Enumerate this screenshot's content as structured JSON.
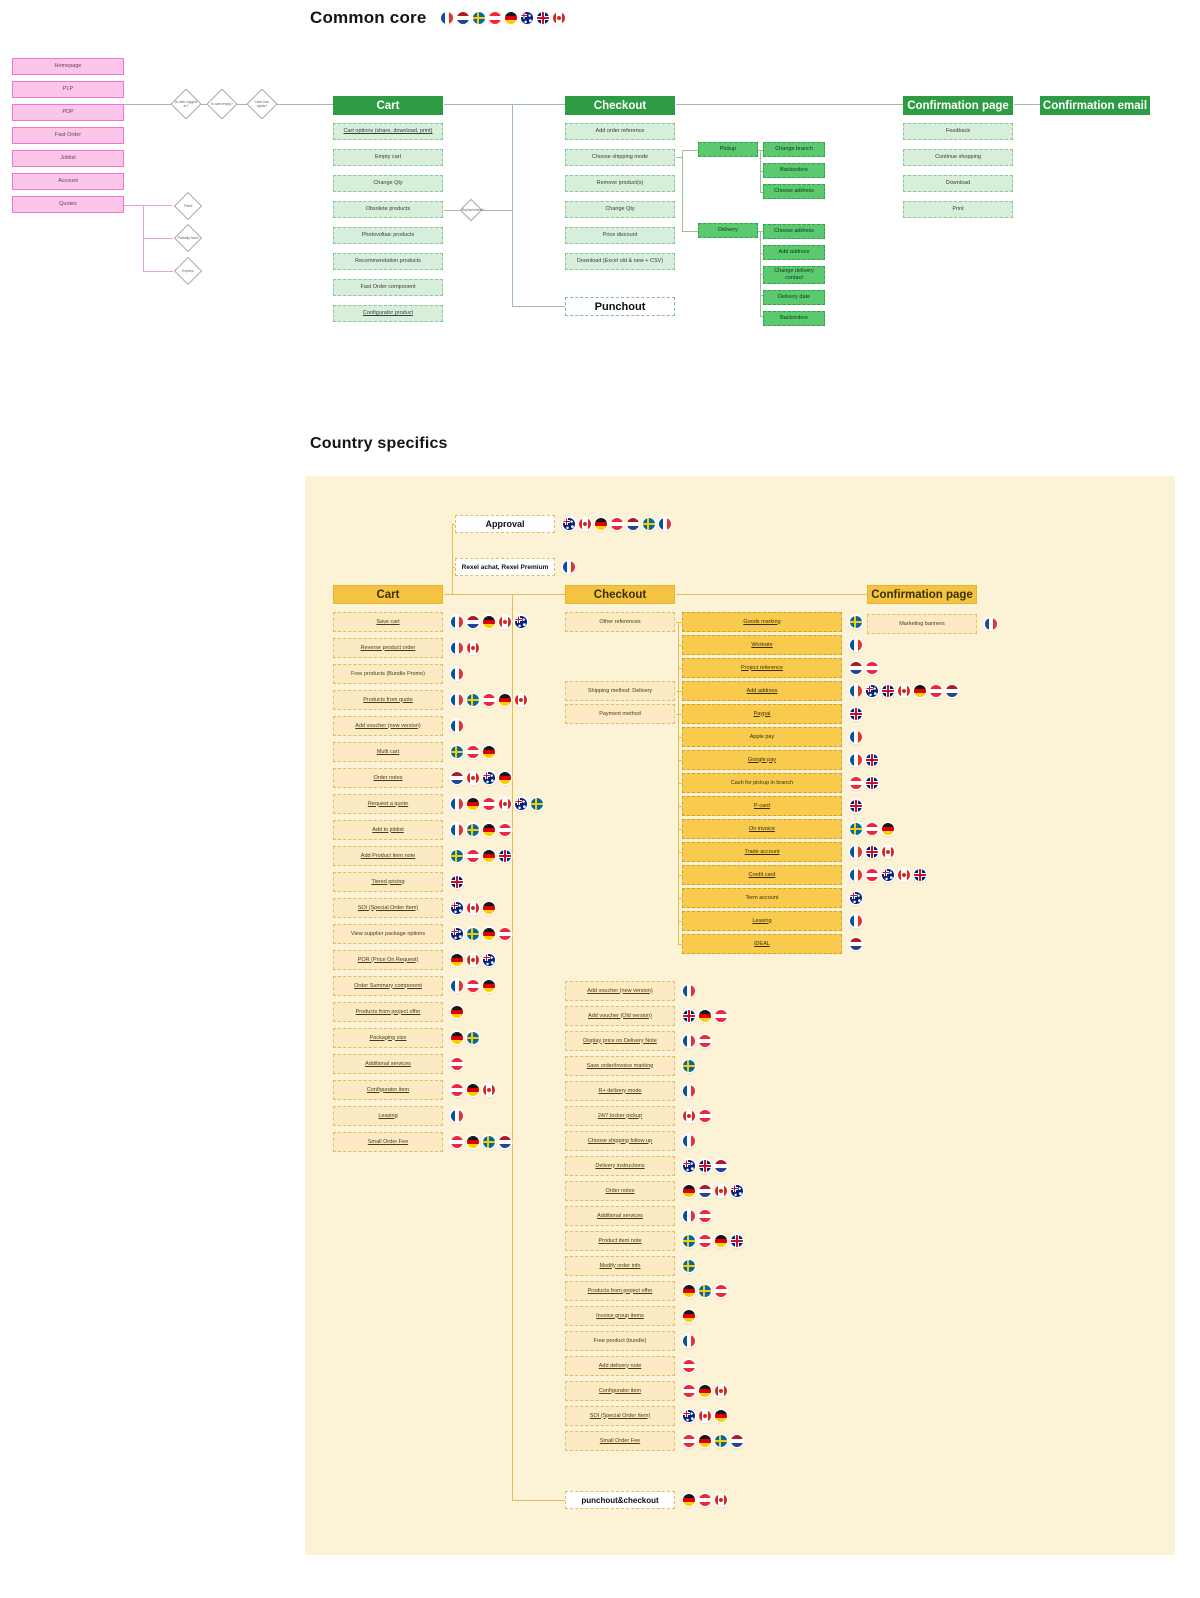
{
  "colors": {
    "green_header": "#2d9c44",
    "green_item": "#d7efda",
    "green_solid": "#5bc96f",
    "yellow_header": "#f5c342",
    "yellow_item": "#fbeac3",
    "yellow_strong": "#f8ca4d",
    "pink": "#fbc6ea",
    "panel_beige": "#fcf3d6"
  },
  "common_core": {
    "title": "Common core",
    "flags": [
      "fr",
      "nl",
      "se",
      "at",
      "de",
      "au",
      "uk",
      "ca"
    ],
    "pages": [
      "Homepage",
      "PLP",
      "PDP",
      "Fast Order",
      "Joblist",
      "Account",
      "Quotes"
    ],
    "decisions_top": [
      "Is user logged in?",
      "Is cart empty?",
      "User has rights?"
    ],
    "decisions_quotes": [
      "Fixed",
      "Partially fixed",
      "Expires"
    ],
    "decision_obsolete": "Replacement?",
    "cart": {
      "title": "Cart",
      "items": [
        {
          "label": "Cart options (share, download, print)",
          "u": true
        },
        "Empty cart",
        "Change Qty",
        "Obsolete products",
        "Photovoltaic products",
        "Recommendation products",
        "Fast Order component",
        {
          "label": "Configurator product",
          "u": true
        }
      ]
    },
    "checkout": {
      "title": "Checkout",
      "punchout": "Punchout",
      "items": [
        "Add order reference",
        "Choose shipping mode",
        "Remove product(s)",
        "Change Qty",
        "Price discount",
        "Download (Excel old & new + CSV)"
      ]
    },
    "pickup": {
      "label": "Pickup",
      "children": [
        "Change branch",
        "Backorders",
        "Choose address"
      ]
    },
    "delivery": {
      "label": "Delivery",
      "children": [
        "Choose address",
        "Add address",
        "Change delivery contact",
        "Delivery date",
        "Backorders"
      ]
    },
    "confirmation_page": {
      "title": "Confirmation page",
      "items": [
        "Feedback",
        "Continue shopping",
        "Download",
        "Print"
      ]
    },
    "confirmation_email": {
      "title": "Confirmation email"
    }
  },
  "country_specifics": {
    "title": "Country specifics",
    "approval": {
      "label": "Approval",
      "flags": [
        "au",
        "ca",
        "de",
        "at",
        "nl",
        "se",
        "fr"
      ]
    },
    "rexel": {
      "label": "Rexel achat, Rexel Premium",
      "flags": [
        "fr"
      ]
    },
    "cart": {
      "title": "Cart",
      "items": [
        {
          "label": "Save cart",
          "flags": [
            "fr",
            "nl",
            "de",
            "ca",
            "au"
          ],
          "u": true
        },
        {
          "label": "Reverse product order",
          "flags": [
            "fr",
            "ca"
          ],
          "u": true
        },
        {
          "label": "Free products (Bundle Promo)",
          "flags": [
            "fr"
          ]
        },
        {
          "label": "Products from quote",
          "flags": [
            "fr",
            "se",
            "at",
            "de",
            "ca"
          ],
          "u": true
        },
        {
          "label": "Add voucher (new version)",
          "flags": [
            "fr"
          ],
          "u": true
        },
        {
          "label": "Multi cart",
          "flags": [
            "se",
            "at",
            "de"
          ],
          "u": true
        },
        {
          "label": "Order notes",
          "flags": [
            "nl",
            "ca",
            "au",
            "de"
          ],
          "u": true
        },
        {
          "label": "Request a quote",
          "flags": [
            "fr",
            "de",
            "at",
            "ca",
            "au",
            "se"
          ],
          "u": true
        },
        {
          "label": "Add to joblist",
          "flags": [
            "fr",
            "se",
            "de",
            "at"
          ],
          "u": true
        },
        {
          "label": "Add Product item note",
          "flags": [
            "se",
            "at",
            "de",
            "uk"
          ],
          "u": true
        },
        {
          "label": "Tiered pricing",
          "flags": [
            "uk"
          ],
          "u": true
        },
        {
          "label": "SOI (Special Order Item)",
          "flags": [
            "au",
            "ca",
            "de"
          ],
          "u": true
        },
        {
          "label": "View supplier package options",
          "flags": [
            "au",
            "se",
            "de",
            "at"
          ]
        },
        {
          "label": "POR (Price On Request)",
          "flags": [
            "de",
            "ca",
            "au"
          ],
          "u": true
        },
        {
          "label": "Order Summary component",
          "flags": [
            "fr",
            "at",
            "de"
          ],
          "u": true
        },
        {
          "label": "Products from project offer",
          "flags": [
            "de"
          ],
          "u": true
        },
        {
          "label": "Packaging size",
          "flags": [
            "de",
            "se"
          ],
          "u": true
        },
        {
          "label": "Additional services",
          "flags": [
            "at"
          ],
          "u": true
        },
        {
          "label": "Configurator item",
          "flags": [
            "at",
            "de",
            "ca"
          ],
          "u": true
        },
        {
          "label": "Leasing",
          "flags": [
            "fr"
          ],
          "u": true
        },
        {
          "label": "Small Order Fee",
          "flags": [
            "at",
            "de",
            "se",
            "nl"
          ],
          "u": true
        }
      ]
    },
    "checkout": {
      "title": "Checkout",
      "groups": [
        {
          "label": "Other references"
        },
        {
          "label": "Shipping method: Delivery"
        },
        {
          "label": "Payment method"
        }
      ],
      "group_children": [
        {
          "label": "Goods marking",
          "flags": [
            "se"
          ],
          "u": true
        },
        {
          "label": "Worksite",
          "flags": [
            "fr"
          ],
          "u": true
        },
        {
          "label": "Project reference",
          "flags": [
            "nl",
            "at"
          ],
          "u": true
        },
        {
          "label": "Add address",
          "flags": [
            "fr",
            "au",
            "uk",
            "ca",
            "de",
            "at",
            "nl"
          ],
          "u": true
        },
        {
          "label": "Paypal",
          "flags": [
            "uk"
          ],
          "u": true
        },
        {
          "label": "Apple pay",
          "flags": [
            "fr"
          ]
        },
        {
          "label": "Google pay",
          "flags": [
            "fr",
            "uk"
          ],
          "u": true
        },
        {
          "label": "Cash for pickup in branch",
          "flags": [
            "at",
            "uk"
          ]
        },
        {
          "label": "P-card",
          "flags": [
            "uk"
          ],
          "u": true
        },
        {
          "label": "On invoice",
          "flags": [
            "se",
            "at",
            "de"
          ],
          "u": true
        },
        {
          "label": "Trade account",
          "flags": [
            "fr",
            "uk",
            "ca"
          ],
          "u": true
        },
        {
          "label": "Credit card",
          "flags": [
            "fr",
            "at",
            "au",
            "ca",
            "uk"
          ],
          "u": true
        },
        {
          "label": "Term account",
          "flags": [
            "au"
          ]
        },
        {
          "label": "Leasing",
          "flags": [
            "fr"
          ],
          "u": true
        },
        {
          "label": "iDEAL",
          "flags": [
            "nl"
          ],
          "u": true
        }
      ],
      "items": [
        {
          "label": "Add voucher (new version)",
          "flags": [
            "fr"
          ],
          "u": true
        },
        {
          "label": "Add voucher (Old version)",
          "flags": [
            "uk",
            "de",
            "at"
          ],
          "u": true
        },
        {
          "label": "Display price on Delivery Note",
          "flags": [
            "fr",
            "at"
          ],
          "u": true
        },
        {
          "label": "Save order/invoice marking",
          "flags": [
            "se"
          ],
          "u": true
        },
        {
          "label": "R+ delivery mode",
          "flags": [
            "fr"
          ],
          "u": true
        },
        {
          "label": "24/7 locker pickup",
          "flags": [
            "ca",
            "at"
          ],
          "u": true
        },
        {
          "label": "Choose shipping follow up",
          "flags": [
            "fr"
          ],
          "u": true
        },
        {
          "label": "Delivery instructions",
          "flags": [
            "au",
            "uk",
            "nl"
          ],
          "u": true
        },
        {
          "label": "Order notes",
          "flags": [
            "de",
            "nl",
            "ca",
            "au"
          ],
          "u": true
        },
        {
          "label": "Additional services",
          "flags": [
            "fr",
            "at"
          ],
          "u": true
        },
        {
          "label": "Product item note",
          "flags": [
            "se",
            "at",
            "de",
            "uk"
          ],
          "u": true
        },
        {
          "label": "Modify order info",
          "flags": [
            "se"
          ],
          "u": true
        },
        {
          "label": "Products from project offer",
          "flags": [
            "de",
            "se",
            "at"
          ],
          "u": true
        },
        {
          "label": "Invoice group items",
          "flags": [
            "de"
          ],
          "u": true
        },
        {
          "label": "Free product (bundle)",
          "flags": [
            "fr"
          ]
        },
        {
          "label": "Add delivery note",
          "flags": [
            "at"
          ],
          "u": true
        },
        {
          "label": "Configurator item",
          "flags": [
            "at",
            "de",
            "ca"
          ],
          "u": true
        },
        {
          "label": "SOI (Special Order Item)",
          "flags": [
            "au",
            "ca",
            "de"
          ],
          "u": true
        },
        {
          "label": "Small Order Fee",
          "flags": [
            "at",
            "de",
            "se",
            "nl"
          ],
          "u": true
        }
      ],
      "punchout": {
        "label": "punchout&checkout",
        "flags": [
          "de",
          "at",
          "ca"
        ]
      }
    },
    "confirmation_page": {
      "title": "Confirmation page",
      "items": [
        {
          "label": "Marketing banners",
          "flags": [
            "fr"
          ]
        }
      ]
    }
  }
}
